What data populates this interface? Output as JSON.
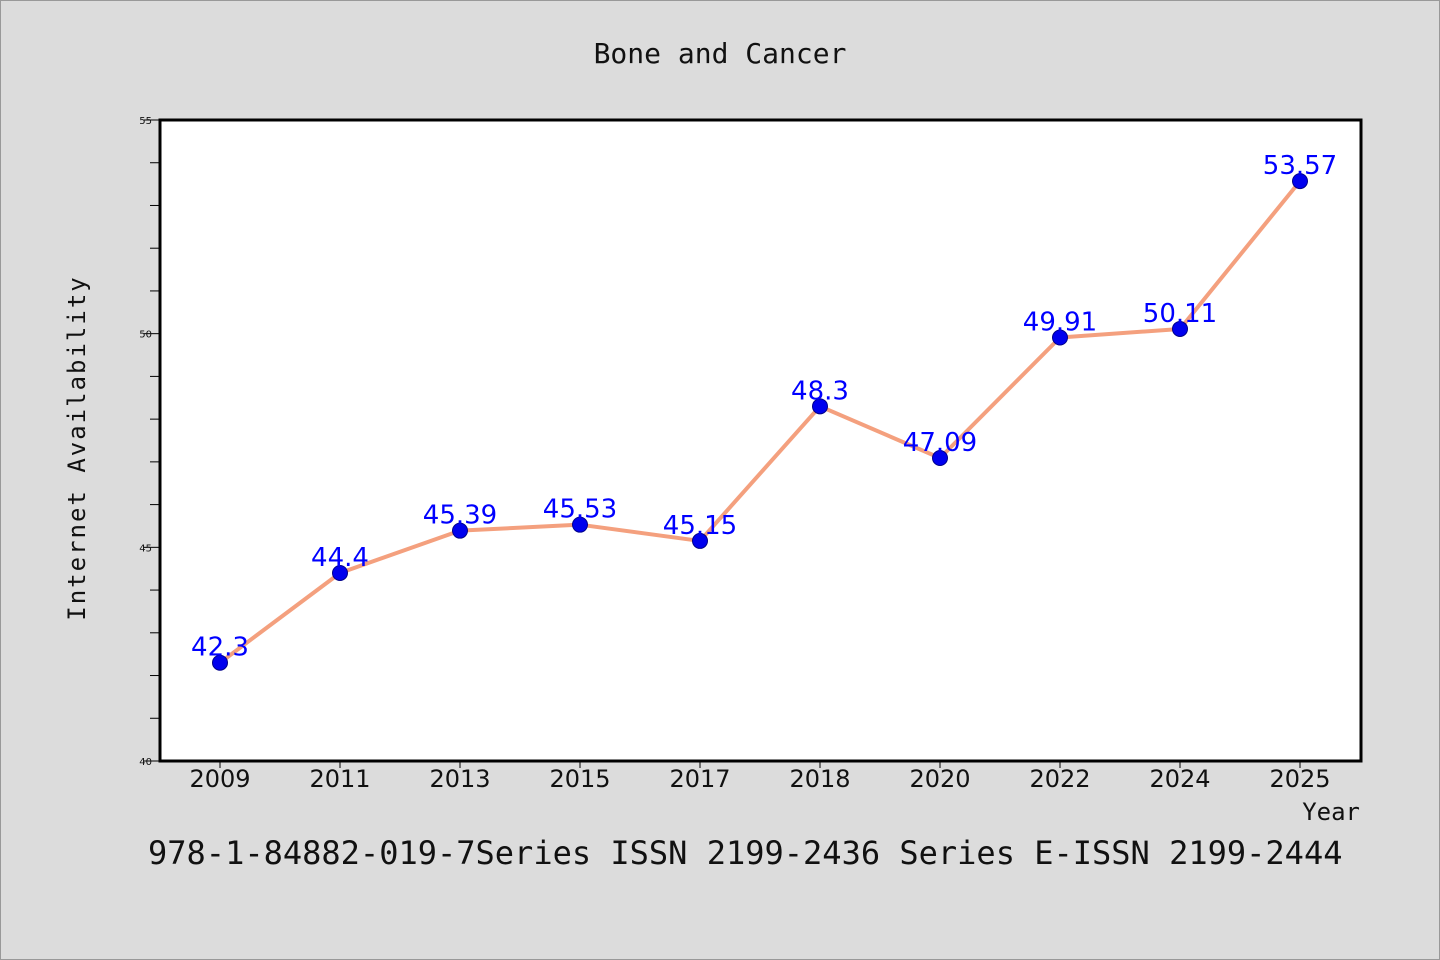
{
  "chart_data": {
    "type": "line",
    "title": "Bone and Cancer",
    "xlabel": "Year",
    "ylabel": "Internet Availability",
    "categories": [
      "2009",
      "2011",
      "2013",
      "2015",
      "2017",
      "2018",
      "2020",
      "2022",
      "2024",
      "2025"
    ],
    "series": [
      {
        "values": [
          42.3,
          44.4,
          45.39,
          45.53,
          45.15,
          48.3,
          47.09,
          49.91,
          50.11,
          53.57
        ],
        "data_labels": [
          "42.3",
          "44.4",
          "45.39",
          "45.53",
          "45.15",
          "48.3",
          "47.09",
          "49.91",
          "50.11",
          "53.57"
        ]
      }
    ],
    "ylim": [
      40,
      55
    ],
    "yticks": [
      "40",
      "45",
      "50",
      "55"
    ],
    "grid": false,
    "line_color": "#f4a07e",
    "marker_color": "#0000ee",
    "label_color": "#0000ff"
  },
  "footer": {
    "text": "978-1-84882-019-7Series ISSN 2199-2436 Series E-ISSN 2199-2444"
  }
}
